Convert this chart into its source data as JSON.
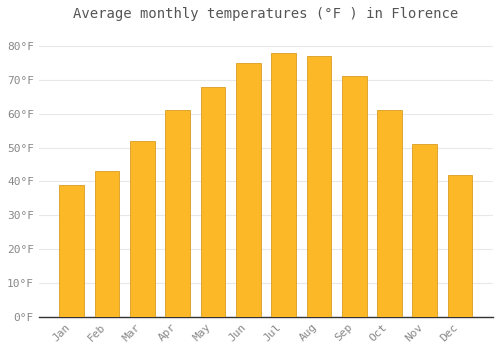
{
  "title": "Average monthly temperatures (°F ) in Florence",
  "months": [
    "Jan",
    "Feb",
    "Mar",
    "Apr",
    "May",
    "Jun",
    "Jul",
    "Aug",
    "Sep",
    "Oct",
    "Nov",
    "Dec"
  ],
  "values": [
    39,
    43,
    52,
    61,
    68,
    75,
    78,
    77,
    71,
    61,
    51,
    42
  ],
  "bar_color": "#FDB827",
  "bar_edge_color": "#d4900a",
  "background_color": "#ffffff",
  "grid_color": "#e8e8e8",
  "ylim": [
    0,
    85
  ],
  "yticks": [
    0,
    10,
    20,
    30,
    40,
    50,
    60,
    70,
    80
  ],
  "ytick_labels": [
    "0°F",
    "10°F",
    "20°F",
    "30°F",
    "40°F",
    "50°F",
    "60°F",
    "70°F",
    "80°F"
  ],
  "title_fontsize": 10,
  "tick_fontsize": 8,
  "font_color": "#888888",
  "title_color": "#555555"
}
